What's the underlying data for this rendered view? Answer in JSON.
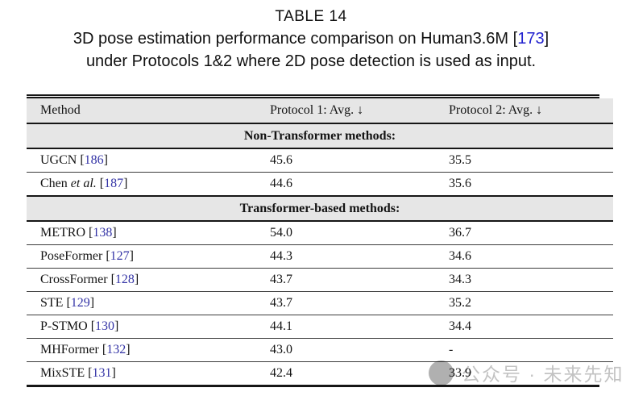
{
  "page": {
    "title": "TABLE 14",
    "caption_line1_pre": "3D pose estimation performance comparison on Human3.6M [",
    "caption_ref": "173",
    "caption_line1_post": "]",
    "caption_line2": "under Protocols 1&2 where 2D pose detection is used as input."
  },
  "table": {
    "headers": [
      "Method",
      "Protocol 1: Avg. ↓",
      "Protocol 2: Avg. ↓"
    ],
    "bracket_open": "[",
    "bracket_close": "]",
    "sections": [
      {
        "label": "Non-Transformer methods:",
        "rows": [
          {
            "name": "UGCN",
            "etal": "",
            "ref": "186",
            "p1": "45.6",
            "p2": "35.5"
          },
          {
            "name": "Chen",
            "etal": "et al.",
            "ref": "187",
            "p1": "44.6",
            "p2": "35.6"
          }
        ]
      },
      {
        "label": "Transformer-based methods:",
        "rows": [
          {
            "name": "METRO",
            "etal": "",
            "ref": "138",
            "p1": "54.0",
            "p2": "36.7"
          },
          {
            "name": "PoseFormer",
            "etal": "",
            "ref": "127",
            "p1": "44.3",
            "p2": "34.6"
          },
          {
            "name": "CrossFormer",
            "etal": "",
            "ref": "128",
            "p1": "43.7",
            "p2": "34.3"
          },
          {
            "name": "STE",
            "etal": "",
            "ref": "129",
            "p1": "43.7",
            "p2": "35.2"
          },
          {
            "name": "P-STMO",
            "etal": "",
            "ref": "130",
            "p1": "44.1",
            "p2": "34.4"
          },
          {
            "name": "MHFormer",
            "etal": "",
            "ref": "132",
            "p1": "43.0",
            "p2": "-"
          },
          {
            "name": "MixSTE",
            "etal": "",
            "ref": "131",
            "p1": "42.4",
            "p2": "33.9"
          }
        ]
      }
    ]
  },
  "watermark": {
    "text": "公众号 · 未来先知",
    "logo": "wechat-official-account-logo",
    "text_color": "#c3c3c3"
  },
  "colors": {
    "citation_blue": "#3434a6",
    "caption_citation_blue": "#2323cf",
    "section_band_grey": "#e6e6e6",
    "rule_black": "#161616"
  }
}
